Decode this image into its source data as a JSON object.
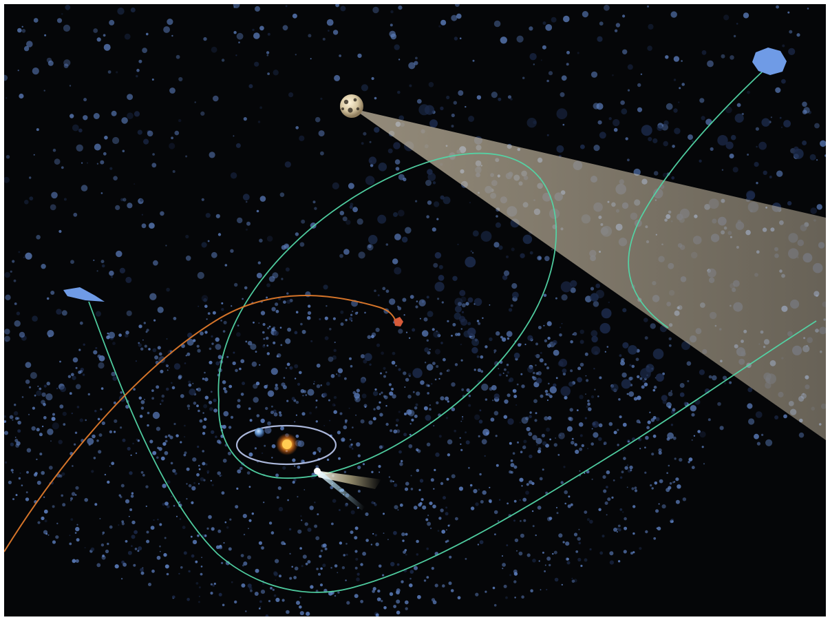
{
  "scene": {
    "colors": {
      "background": "#050608",
      "asteroid": "#5d7fbf",
      "asteroid_dark": "#1c2a4a",
      "orbit_green": "#52d6a6",
      "orbit_orange": "#e07a2b",
      "earth_orbit": "#c9d7ff",
      "sun": "#ffb43a",
      "beam": "#e0d2b7",
      "comet_tail": "#bfeaff",
      "comet_glow": "#f5e6b0",
      "probe_blue": "#6f9be6",
      "mars": "#d75b3a"
    },
    "objects": [
      "sun",
      "earth",
      "earth-orbit",
      "comet",
      "green-orbit-ellipse",
      "green-trajectory-lower",
      "orange-trajectory",
      "distant-probe-left",
      "distant-probe-top-right",
      "crater-moon",
      "observation-beam",
      "red-asteroid",
      "asteroid-field"
    ]
  }
}
